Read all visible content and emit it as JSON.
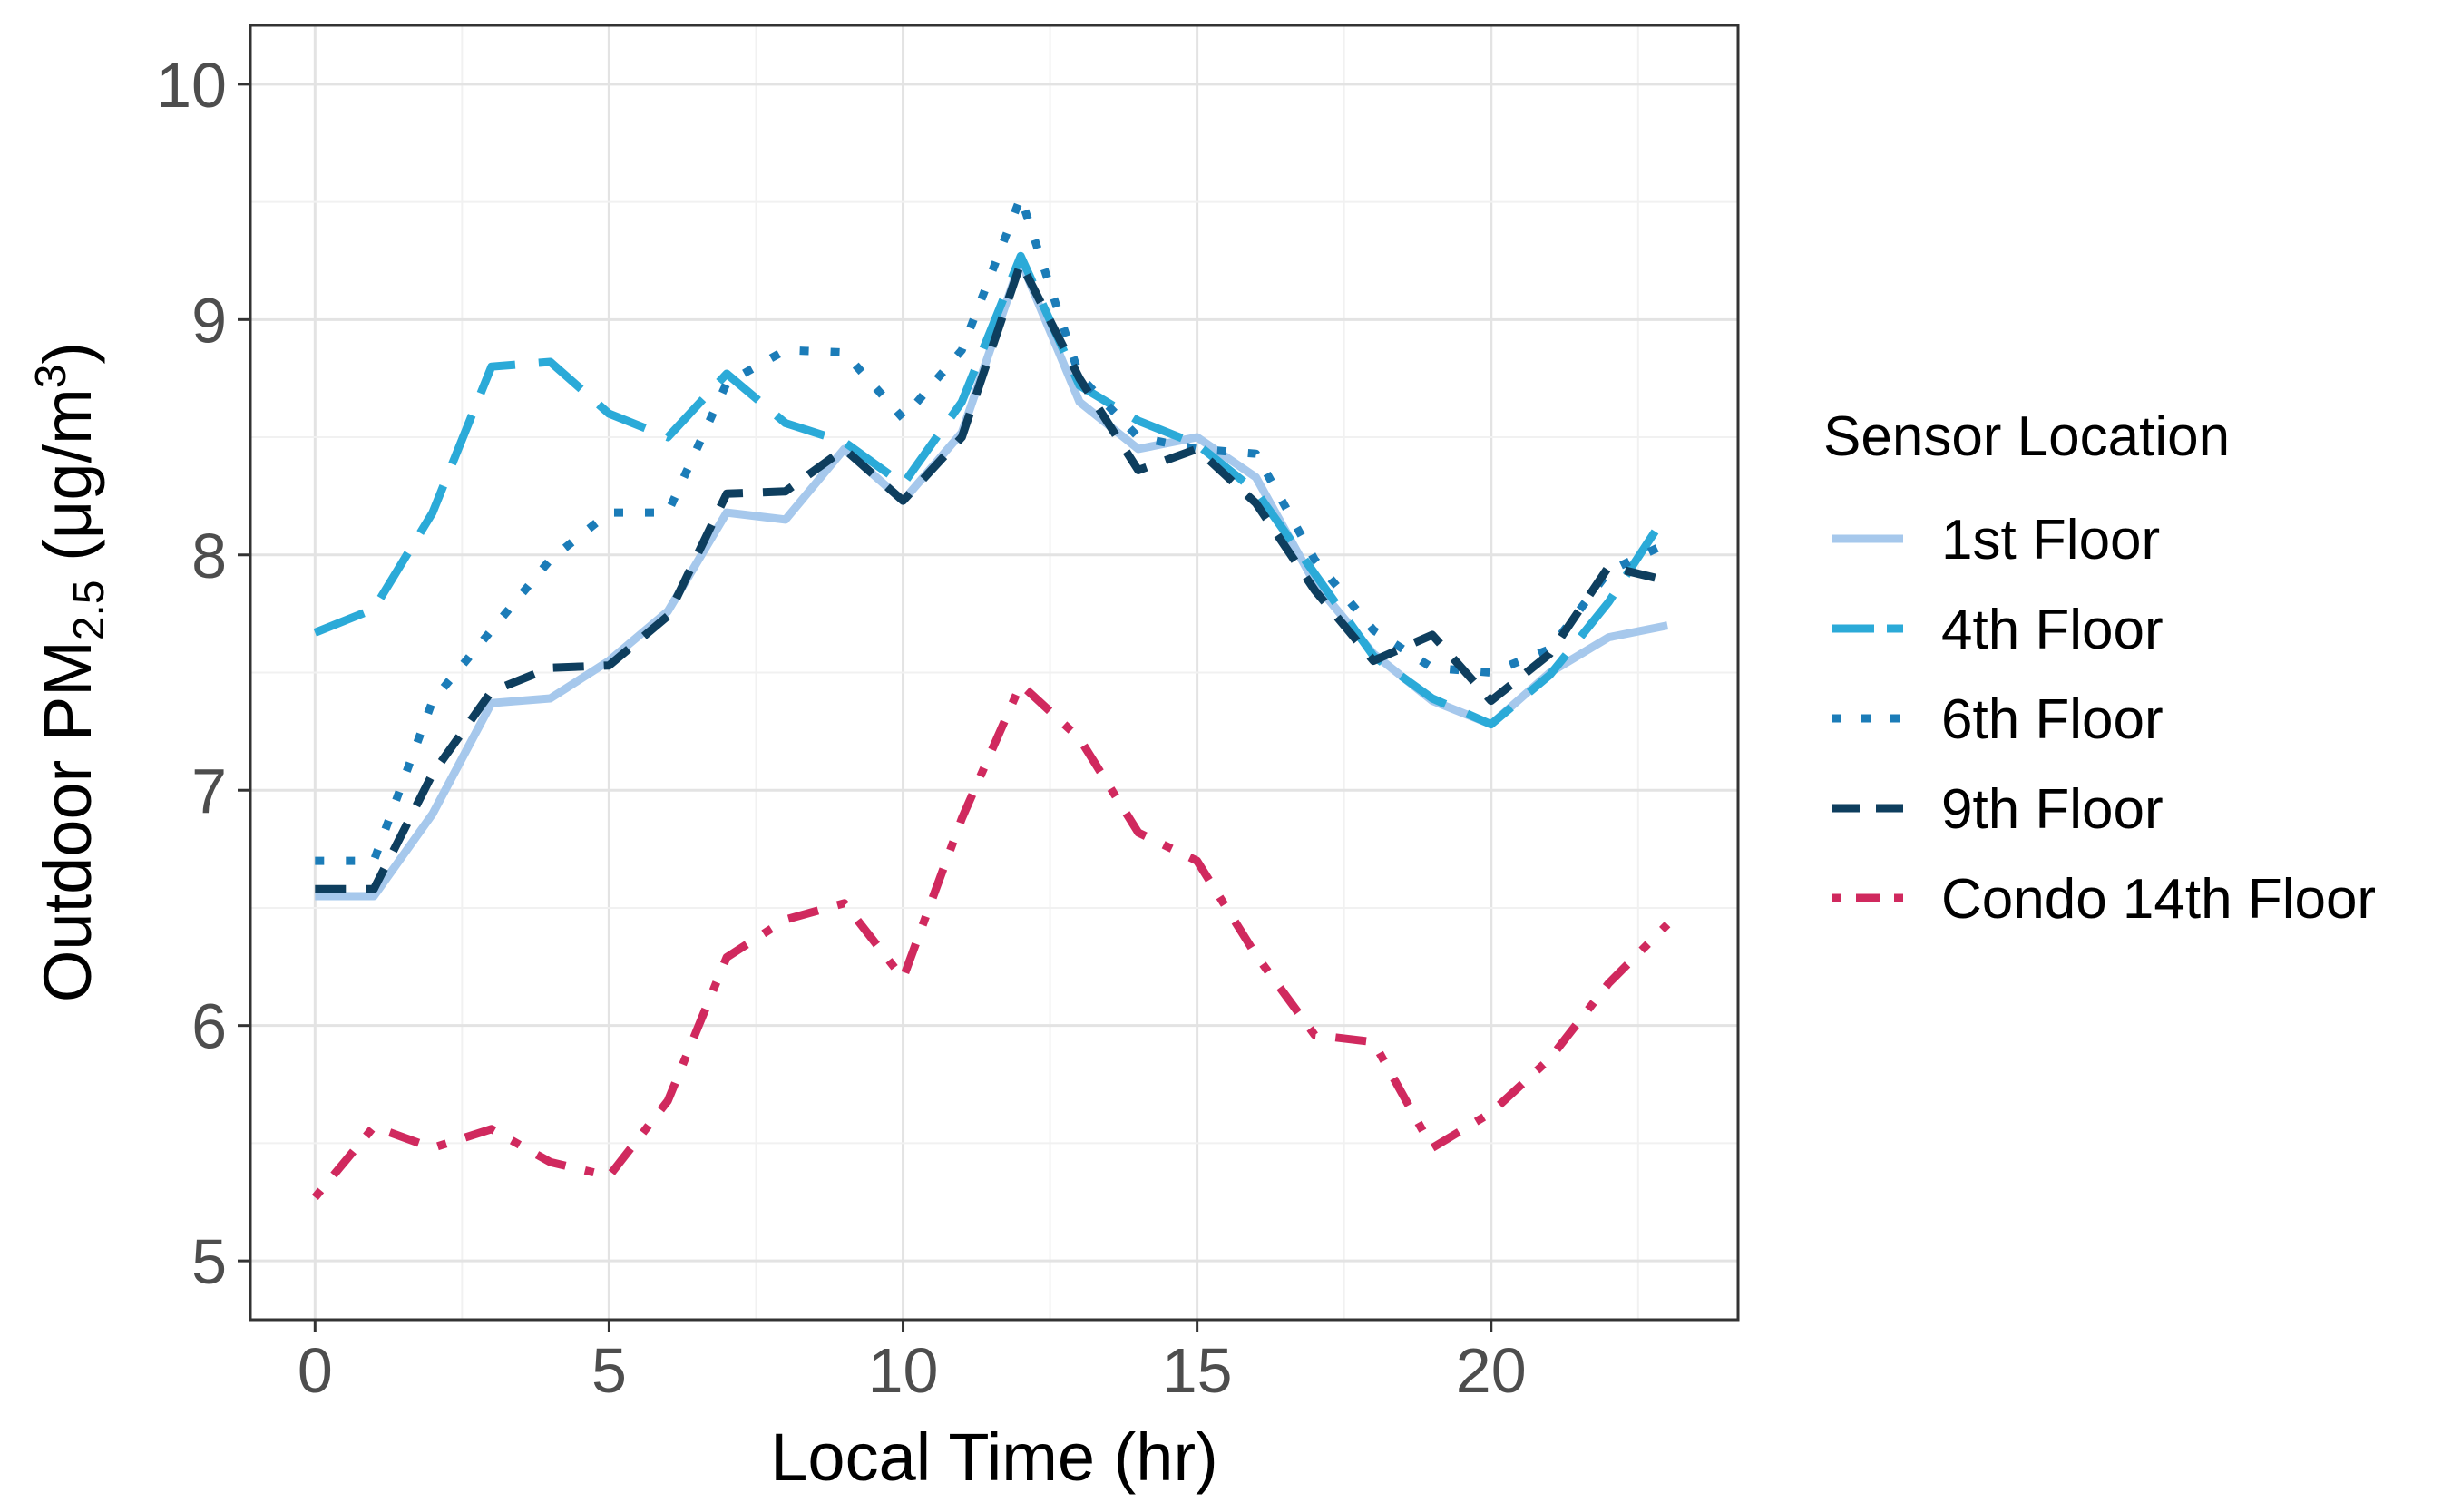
{
  "chart_data": {
    "type": "line",
    "title": "",
    "xlabel": "Local Time (hr)",
    "ylabel": {
      "prefix": "Outdoor PM",
      "subscript": "2.5",
      "unit_open": " (μg/m",
      "superscript": "3",
      "unit_close": ")"
    },
    "xlim": [
      -1.1,
      24.2
    ],
    "ylim": [
      4.75,
      10.25
    ],
    "xticks": [
      0,
      5,
      10,
      15,
      20
    ],
    "xtick_labels": [
      "0",
      "5",
      "10",
      "15",
      "20"
    ],
    "yticks": [
      5,
      6,
      7,
      8,
      9,
      10
    ],
    "ytick_labels": [
      "5",
      "6",
      "7",
      "8",
      "9",
      "10"
    ],
    "grid": true,
    "legend_title": "Sensor Location",
    "legend_position": "right",
    "x": [
      0,
      1,
      2,
      3,
      4,
      5,
      6,
      7,
      8,
      9,
      10,
      11,
      12,
      13,
      14,
      15,
      16,
      17,
      18,
      19,
      20,
      21,
      22,
      23
    ],
    "series": [
      {
        "name": "1st Floor",
        "color": "#a6c8ec",
        "style": "solid",
        "values": [
          6.55,
          6.55,
          6.9,
          7.37,
          7.39,
          7.55,
          7.76,
          8.18,
          8.15,
          8.45,
          8.23,
          8.52,
          9.25,
          8.65,
          8.45,
          8.5,
          8.33,
          7.88,
          7.58,
          7.38,
          7.28,
          7.5,
          7.65,
          7.7
        ]
      },
      {
        "name": "4th Floor",
        "color": "#2baad8",
        "style": "longdash",
        "values": [
          7.67,
          7.77,
          8.18,
          8.8,
          8.82,
          8.6,
          8.5,
          8.77,
          8.56,
          8.48,
          8.3,
          8.65,
          9.27,
          8.72,
          8.57,
          8.47,
          8.27,
          7.92,
          7.57,
          7.39,
          7.28,
          7.49,
          7.8,
          8.18
        ]
      },
      {
        "name": "6th Floor",
        "color": "#1b7cb8",
        "style": "dotted",
        "values": [
          6.7,
          6.7,
          7.38,
          7.68,
          7.98,
          8.18,
          8.18,
          8.73,
          8.87,
          8.86,
          8.58,
          8.87,
          9.52,
          8.76,
          8.5,
          8.45,
          8.43,
          7.98,
          7.68,
          7.52,
          7.5,
          7.6,
          7.93,
          8.05
        ]
      },
      {
        "name": "9th Floor",
        "color": "#0e3e5e",
        "style": "dashed",
        "values": [
          6.58,
          6.58,
          7.07,
          7.42,
          7.52,
          7.53,
          7.74,
          8.26,
          8.27,
          8.45,
          8.23,
          8.5,
          9.24,
          8.75,
          8.36,
          8.45,
          8.22,
          7.85,
          7.55,
          7.66,
          7.38,
          7.58,
          7.95,
          7.89
        ]
      },
      {
        "name": "Condo 14th Floor",
        "color": "#d0295e",
        "style": "dotdash",
        "values": [
          5.27,
          5.57,
          5.48,
          5.56,
          5.42,
          5.36,
          5.68,
          6.29,
          6.45,
          6.52,
          6.2,
          6.88,
          7.45,
          7.22,
          6.82,
          6.7,
          6.3,
          5.96,
          5.93,
          5.48,
          5.63,
          5.86,
          6.18,
          6.43
        ]
      }
    ]
  }
}
